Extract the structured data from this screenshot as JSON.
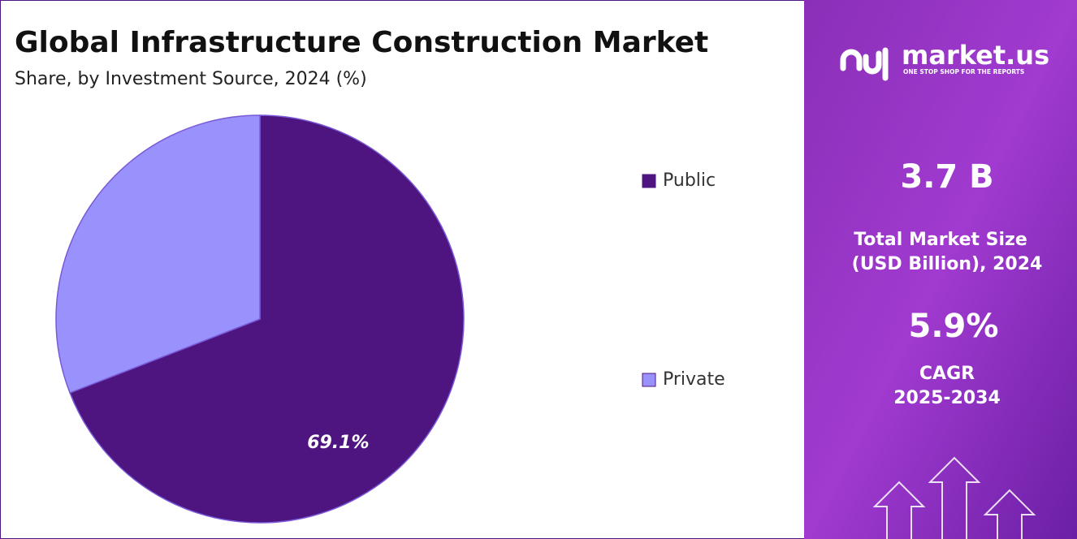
{
  "chart_data": {
    "type": "pie",
    "title": "Global Infrastructure Construction Market",
    "subtitle": "Share, by Investment Source, 2024 (%)",
    "categories": [
      "Public",
      "Private"
    ],
    "values": [
      69.1,
      30.9
    ],
    "value_labels": [
      "69.1%",
      null
    ],
    "colors": [
      "#4e1580",
      "#9a92fc"
    ],
    "legend": "right"
  },
  "side_panel": {
    "brand": "market.us",
    "tagline": "ONE STOP SHOP FOR THE REPORTS",
    "market_size": "3.7 B",
    "market_size_label": [
      "Total Market Size",
      "(USD Billion), 2024"
    ],
    "cagr": "5.9%",
    "cagr_label": [
      "CAGR",
      "2025-2034"
    ]
  }
}
